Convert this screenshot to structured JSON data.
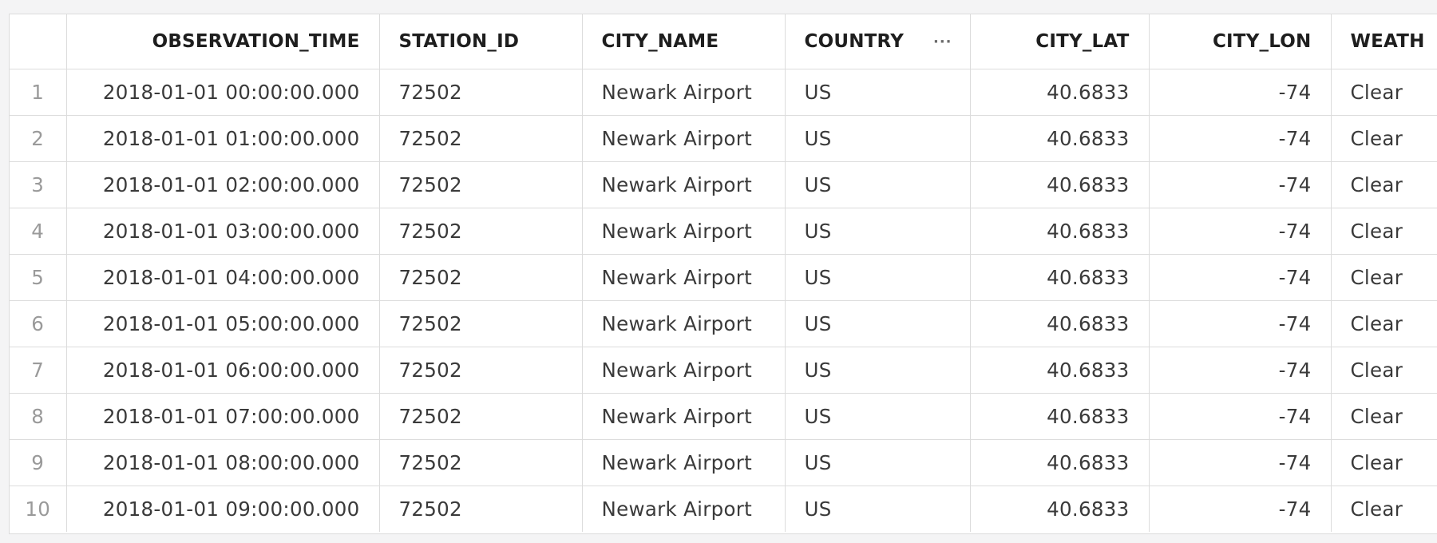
{
  "columns": {
    "observation_time": "OBSERVATION_TIME",
    "station_id": "STATION_ID",
    "city_name": "CITY_NAME",
    "country": "COUNTRY",
    "city_lat": "CITY_LAT",
    "city_lon": "CITY_LON",
    "weather": "WEATH",
    "menu_glyph": "···"
  },
  "rows": [
    {
      "idx": "1",
      "observation_time": "2018-01-01 00:00:00.000",
      "station_id": "72502",
      "city_name": "Newark Airport",
      "country": "US",
      "city_lat": "40.6833",
      "city_lon": "-74",
      "weather": "Clear"
    },
    {
      "idx": "2",
      "observation_time": "2018-01-01 01:00:00.000",
      "station_id": "72502",
      "city_name": "Newark Airport",
      "country": "US",
      "city_lat": "40.6833",
      "city_lon": "-74",
      "weather": "Clear"
    },
    {
      "idx": "3",
      "observation_time": "2018-01-01 02:00:00.000",
      "station_id": "72502",
      "city_name": "Newark Airport",
      "country": "US",
      "city_lat": "40.6833",
      "city_lon": "-74",
      "weather": "Clear"
    },
    {
      "idx": "4",
      "observation_time": "2018-01-01 03:00:00.000",
      "station_id": "72502",
      "city_name": "Newark Airport",
      "country": "US",
      "city_lat": "40.6833",
      "city_lon": "-74",
      "weather": "Clear"
    },
    {
      "idx": "5",
      "observation_time": "2018-01-01 04:00:00.000",
      "station_id": "72502",
      "city_name": "Newark Airport",
      "country": "US",
      "city_lat": "40.6833",
      "city_lon": "-74",
      "weather": "Clear"
    },
    {
      "idx": "6",
      "observation_time": "2018-01-01 05:00:00.000",
      "station_id": "72502",
      "city_name": "Newark Airport",
      "country": "US",
      "city_lat": "40.6833",
      "city_lon": "-74",
      "weather": "Clear"
    },
    {
      "idx": "7",
      "observation_time": "2018-01-01 06:00:00.000",
      "station_id": "72502",
      "city_name": "Newark Airport",
      "country": "US",
      "city_lat": "40.6833",
      "city_lon": "-74",
      "weather": "Clear"
    },
    {
      "idx": "8",
      "observation_time": "2018-01-01 07:00:00.000",
      "station_id": "72502",
      "city_name": "Newark Airport",
      "country": "US",
      "city_lat": "40.6833",
      "city_lon": "-74",
      "weather": "Clear"
    },
    {
      "idx": "9",
      "observation_time": "2018-01-01 08:00:00.000",
      "station_id": "72502",
      "city_name": "Newark Airport",
      "country": "US",
      "city_lat": "40.6833",
      "city_lon": "-74",
      "weather": "Clear"
    },
    {
      "idx": "10",
      "observation_time": "2018-01-01 09:00:00.000",
      "station_id": "72502",
      "city_name": "Newark Airport",
      "country": "US",
      "city_lat": "40.6833",
      "city_lon": "-74",
      "weather": "Clear"
    }
  ]
}
